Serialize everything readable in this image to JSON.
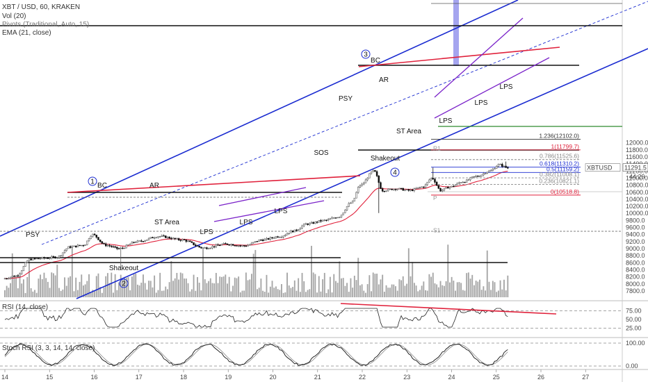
{
  "header": {
    "symbol": "XBT / USD, 60, KRAKEN",
    "vol": "Vol (20)",
    "pivots": "Pivots (Traditional, Auto, 15)",
    "ema": "EMA (21, close)"
  },
  "price_axis": {
    "ticks": [
      7800,
      8000,
      8200,
      8400,
      8600,
      8800,
      9000,
      9200,
      9400,
      9600,
      9800,
      10000,
      10200,
      10400,
      10600,
      10800,
      11000,
      11200,
      11400,
      11600,
      11800,
      12000
    ],
    "tick_labels": [
      "7800.0",
      "8000.0",
      "8200.0",
      "8400.0",
      "8600.0",
      "8800.0",
      "9000.0",
      "9200.0",
      "9400.0",
      "9600.0",
      "9800.0",
      "10000.0",
      "10200.0",
      "10400.0",
      "10600.0",
      "10800.0",
      "11000.0",
      "11200.0",
      "11400.0",
      "11600.0",
      "11800.0",
      "12000.0"
    ],
    "ticker_label": "XBTUSD",
    "last_price": "11291.5",
    "last_price_value": 11291.5,
    "countdown": "44:29"
  },
  "time_axis": {
    "labels": [
      "14",
      "15",
      "16",
      "17",
      "18",
      "19",
      "20",
      "21",
      "22",
      "23",
      "24",
      "25",
      "26",
      "27"
    ]
  },
  "fibonacci": [
    {
      "label": "1.236(12102.0)",
      "value": 12102.0,
      "color": "#333333"
    },
    {
      "label": "1(11799.7)",
      "value": 11799.7,
      "color": "#e0213b"
    },
    {
      "label": "0.786(11525.6)",
      "value": 11525.6,
      "color": "#888888"
    },
    {
      "label": "0.618(11310.2)",
      "value": 11310.2,
      "color": "#1a2bd0"
    },
    {
      "label": "0.5(11159.2)",
      "value": 11159.2,
      "color": "#1a2bd0"
    },
    {
      "label": "0.382(11008.1)",
      "value": 11008.1,
      "color": "#888888"
    },
    {
      "label": "0.236(10821.1)",
      "value": 10821.1,
      "color": "#888888"
    },
    {
      "label": "0(10518.8)",
      "value": 10518.8,
      "color": "#e0213b"
    }
  ],
  "pivots": [
    {
      "label": "R1",
      "value": 11750
    },
    {
      "label": "P",
      "value": 10340
    },
    {
      "label": "S1",
      "value": 9420
    }
  ],
  "annotations": {
    "circle_labels": [
      "1",
      "2",
      "3",
      "4"
    ],
    "text_labels": [
      "BC",
      "AR",
      "ST Area",
      "LPS",
      "LPS",
      "LPS",
      "PSY",
      "Shakeout",
      "SOS",
      "PSY",
      "BC",
      "AR",
      "Shakeout",
      "ST Area",
      "LPS",
      "LPS",
      "LPS"
    ]
  },
  "rsi": {
    "label": "RSI (14, close)",
    "ticks": [
      25,
      50,
      75
    ],
    "tick_labels": [
      "25.00",
      "50.00",
      "75.00"
    ],
    "last": 61
  },
  "stoch": {
    "label": "Stoch RSI (3, 3, 14, 14, close)",
    "ticks": [
      0,
      100
    ],
    "tick_labels": [
      "0.00",
      "100.00"
    ],
    "last": 5
  },
  "colors": {
    "up": "#5e5e5e",
    "down": "#111111",
    "ema": "#e0213b",
    "channel": "#1a2bd0",
    "wedge": "#7a22c9",
    "resistance": "#e0213b",
    "pivot_p": "#2e8b2e",
    "volume": "#888888",
    "highlight": "#7f7fe8"
  },
  "chart_data": {
    "type": "candlestick",
    "x_range": [
      "14",
      "27"
    ],
    "ylim": [
      7800,
      12150
    ],
    "anchors": [
      {
        "day": 14.0,
        "price": 8150
      },
      {
        "day": 14.3,
        "price": 8230
      },
      {
        "day": 14.6,
        "price": 8700
      },
      {
        "day": 14.9,
        "price": 8730
      },
      {
        "day": 15.2,
        "price": 8760
      },
      {
        "day": 15.5,
        "price": 9050
      },
      {
        "day": 15.8,
        "price": 9100
      },
      {
        "day": 16.0,
        "price": 9400
      },
      {
        "day": 16.3,
        "price": 9100
      },
      {
        "day": 16.6,
        "price": 9000
      },
      {
        "day": 17.0,
        "price": 9200
      },
      {
        "day": 17.5,
        "price": 9350
      },
      {
        "day": 18.0,
        "price": 9250
      },
      {
        "day": 18.5,
        "price": 9020
      },
      {
        "day": 19.0,
        "price": 9130
      },
      {
        "day": 19.4,
        "price": 9080
      },
      {
        "day": 19.8,
        "price": 9250
      },
      {
        "day": 20.2,
        "price": 9350
      },
      {
        "day": 20.5,
        "price": 9500
      },
      {
        "day": 20.8,
        "price": 9700
      },
      {
        "day": 21.2,
        "price": 9800
      },
      {
        "day": 21.5,
        "price": 9900
      },
      {
        "day": 21.8,
        "price": 10300
      },
      {
        "day": 22.0,
        "price": 10800
      },
      {
        "day": 22.3,
        "price": 11200
      },
      {
        "day": 22.5,
        "price": 10650
      },
      {
        "day": 22.8,
        "price": 10700
      },
      {
        "day": 23.1,
        "price": 10650
      },
      {
        "day": 23.4,
        "price": 10750
      },
      {
        "day": 23.6,
        "price": 11000
      },
      {
        "day": 23.8,
        "price": 10650
      },
      {
        "day": 24.0,
        "price": 10750
      },
      {
        "day": 24.3,
        "price": 10900
      },
      {
        "day": 24.6,
        "price": 11050
      },
      {
        "day": 24.9,
        "price": 11200
      },
      {
        "day": 25.1,
        "price": 11380
      },
      {
        "day": 25.3,
        "price": 11290
      }
    ],
    "levels": {
      "range_top_1": 9400,
      "range_low_1": 8400,
      "range_top_2": 11230,
      "range_low_2": 10000,
      "bottom_band": 8500
    }
  }
}
